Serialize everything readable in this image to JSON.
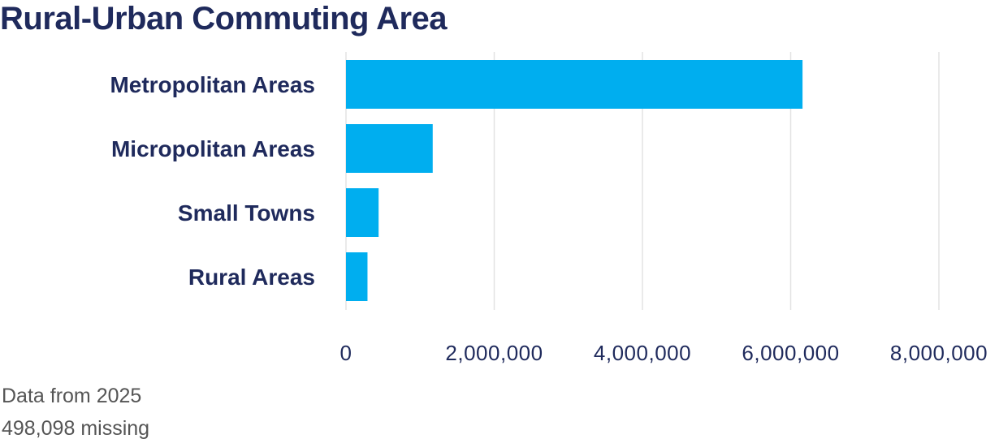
{
  "title": "Rural-Urban Commuting Area",
  "chart_data": {
    "type": "bar",
    "orientation": "horizontal",
    "title": "Rural-Urban Commuting Area",
    "categories": [
      "Metropolitan Areas",
      "Micropolitan Areas",
      "Small Towns",
      "Rural Areas"
    ],
    "values": [
      6160000,
      1170000,
      440000,
      290000
    ],
    "xlim": [
      0,
      8000000
    ],
    "xticks": [
      0,
      2000000,
      4000000,
      6000000,
      8000000
    ],
    "xtick_labels": [
      "0",
      "2,000,000",
      "4,000,000",
      "6,000,000",
      "8,000,000"
    ],
    "grid": true,
    "bar_color": "#00aeef"
  },
  "notes": [
    "Data from 2025",
    "498,098 missing"
  ]
}
